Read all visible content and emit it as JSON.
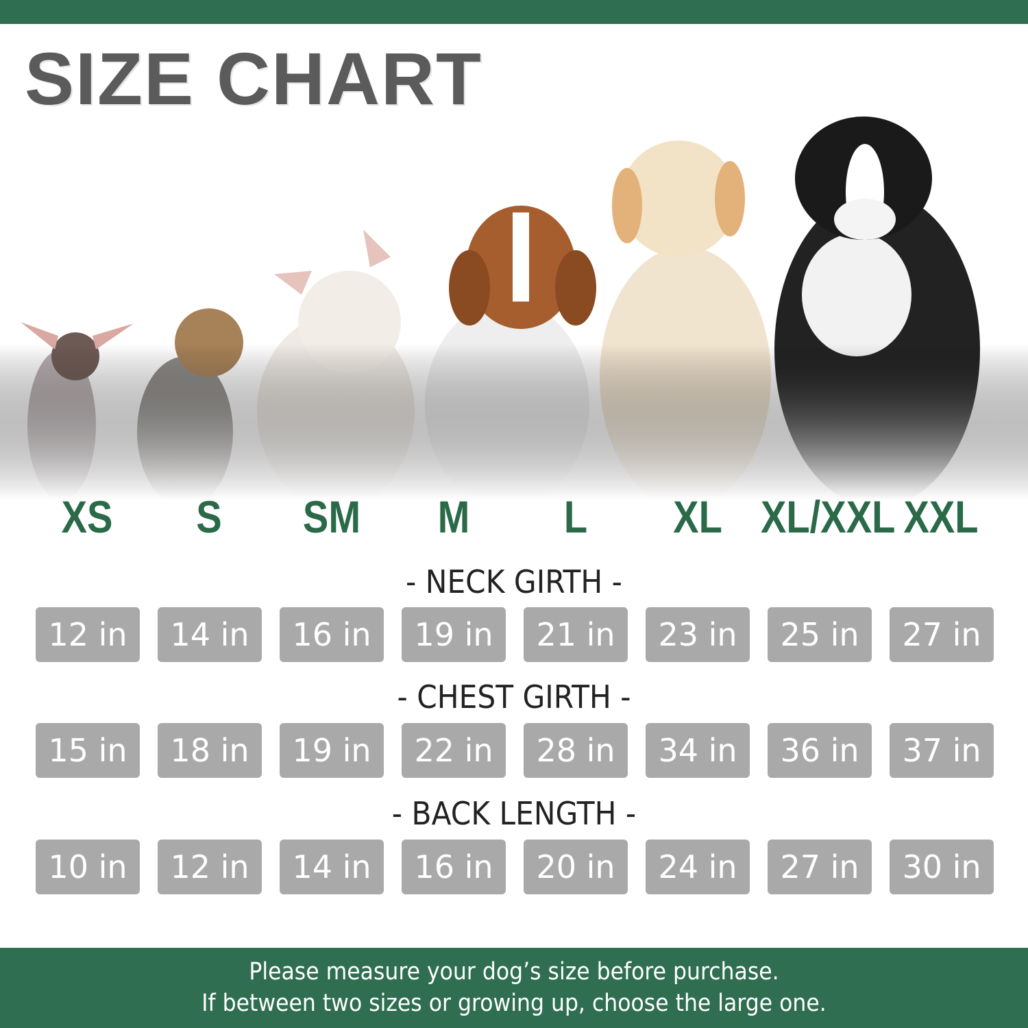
{
  "title": "SIZE CHART",
  "colors": {
    "brand_green": "#2f6e50",
    "size_label_green": "#2a6a48",
    "box_gray": "#a9a9a9"
  },
  "sizes": [
    "XS",
    "S",
    "SM",
    "M",
    "L",
    "XL",
    "XL/XXL",
    "XXL"
  ],
  "rows": [
    {
      "heading": "- NECK GIRTH -",
      "values": [
        "12 in",
        "14 in",
        "16 in",
        "19 in",
        "21 in",
        "23 in",
        "25 in",
        "27 in"
      ]
    },
    {
      "heading": "- CHEST GIRTH -",
      "values": [
        "15 in",
        "18 in",
        "19 in",
        "22 in",
        "28 in",
        "34 in",
        "36 in",
        "37 in"
      ]
    },
    {
      "heading": "- BACK LENGTH -",
      "values": [
        "10 in",
        "12 in",
        "14 in",
        "16 in",
        "20 in",
        "24 in",
        "27 in",
        "30 in"
      ]
    }
  ],
  "footer": {
    "line1": "Please measure your dog’s size before purchase.",
    "line2": "If between two sizes or growing up, choose the large one."
  }
}
